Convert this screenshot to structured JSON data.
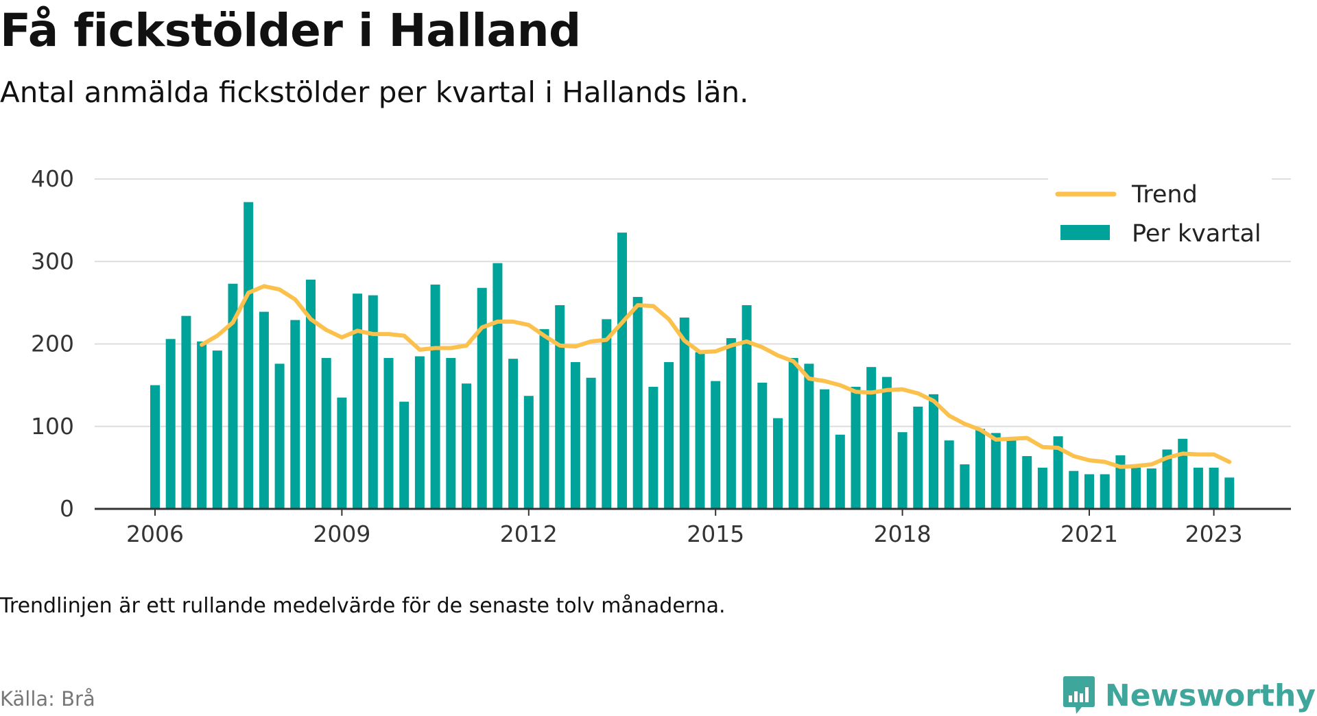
{
  "header": {
    "title": "Få fickstölder i Halland",
    "subtitle": "Antal anmälda fickstölder per kvartal i Hallands län."
  },
  "footer": {
    "note": "Trendlinjen är ett rullande medelvärde för de senaste tolv månaderna.",
    "source": "Källa: Brå",
    "brand": "Newsworthy",
    "brand_icon": "bar-chart-logo-icon"
  },
  "colors": {
    "bar": "#00a39a",
    "trend": "#fcc04c",
    "grid": "#dddddd",
    "axis": "#333333",
    "brand": "#3fa69b"
  },
  "chart_data": {
    "type": "bar",
    "title": "Få fickstölder i Halland",
    "subtitle": "Antal anmälda fickstölder per kvartal i Hallands län.",
    "xlabel": "",
    "ylabel": "",
    "ylim": [
      0,
      400
    ],
    "yticks": [
      0,
      100,
      200,
      300,
      400
    ],
    "xticks": [
      {
        "label": "2006",
        "year": 2006
      },
      {
        "label": "2009",
        "year": 2009
      },
      {
        "label": "2012",
        "year": 2012
      },
      {
        "label": "2015",
        "year": 2015
      },
      {
        "label": "2018",
        "year": 2018
      },
      {
        "label": "2021",
        "year": 2021
      },
      {
        "label": "2023",
        "year": 2023
      }
    ],
    "grid": true,
    "legend": "top-right",
    "categories": [
      "2006 Q1",
      "2006 Q2",
      "2006 Q3",
      "2006 Q4",
      "2007 Q1",
      "2007 Q2",
      "2007 Q3",
      "2007 Q4",
      "2008 Q1",
      "2008 Q2",
      "2008 Q3",
      "2008 Q4",
      "2009 Q1",
      "2009 Q2",
      "2009 Q3",
      "2009 Q4",
      "2010 Q1",
      "2010 Q2",
      "2010 Q3",
      "2010 Q4",
      "2011 Q1",
      "2011 Q2",
      "2011 Q3",
      "2011 Q4",
      "2012 Q1",
      "2012 Q2",
      "2012 Q3",
      "2012 Q4",
      "2013 Q1",
      "2013 Q2",
      "2013 Q3",
      "2013 Q4",
      "2014 Q1",
      "2014 Q2",
      "2014 Q3",
      "2014 Q4",
      "2015 Q1",
      "2015 Q2",
      "2015 Q3",
      "2015 Q4",
      "2016 Q1",
      "2016 Q2",
      "2016 Q3",
      "2016 Q4",
      "2017 Q1",
      "2017 Q2",
      "2017 Q3",
      "2017 Q4",
      "2018 Q1",
      "2018 Q2",
      "2018 Q3",
      "2018 Q4",
      "2019 Q1",
      "2019 Q2",
      "2019 Q3",
      "2019 Q4",
      "2020 Q1",
      "2020 Q2",
      "2020 Q3",
      "2020 Q4",
      "2021 Q1",
      "2021 Q2",
      "2021 Q3",
      "2021 Q4",
      "2022 Q1",
      "2022 Q2",
      "2022 Q3",
      "2022 Q4",
      "2023 Q1",
      "2023 Q2",
      "2023 Q3"
    ],
    "series": [
      {
        "name": "Per kvartal",
        "type": "bar",
        "values": [
          150,
          206,
          234,
          203,
          192,
          273,
          372,
          239,
          176,
          229,
          278,
          183,
          135,
          261,
          259,
          183,
          130,
          185,
          272,
          183,
          152,
          268,
          298,
          182,
          137,
          218,
          247,
          178,
          159,
          230,
          335,
          257,
          148,
          178,
          232,
          190,
          155,
          207,
          247,
          153,
          110,
          183,
          176,
          145,
          90,
          148,
          172,
          160,
          93,
          124,
          139,
          83,
          54,
          97,
          92,
          84,
          64,
          50,
          88,
          46,
          42,
          42,
          65,
          50,
          49,
          72,
          85,
          50,
          50,
          38,
          null
        ]
      },
      {
        "name": "Trend",
        "type": "line",
        "values": [
          null,
          null,
          null,
          199,
          210,
          226,
          262,
          270,
          266,
          254,
          230,
          217,
          208,
          216,
          212,
          212,
          210,
          193,
          195,
          195,
          198,
          220,
          227,
          227,
          223,
          210,
          198,
          197,
          203,
          205,
          226,
          247,
          246,
          230,
          204,
          190,
          191,
          198,
          203,
          196,
          186,
          179,
          158,
          155,
          150,
          142,
          141,
          144,
          145,
          140,
          131,
          113,
          103,
          96,
          84,
          85,
          86,
          75,
          74,
          64,
          59,
          57,
          51,
          52,
          54,
          62,
          67,
          66,
          66,
          57,
          null
        ]
      }
    ]
  }
}
